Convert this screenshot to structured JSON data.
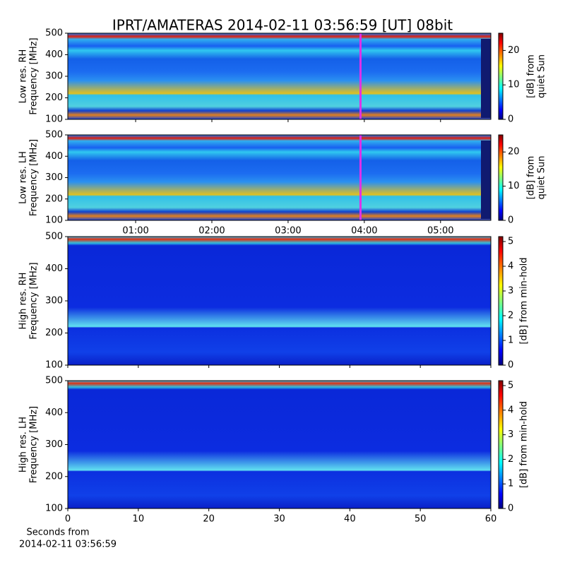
{
  "title": "IPRT/AMATERAS 2014-02-11 03:56:59 [UT]   08bit",
  "chart_data": [
    {
      "type": "heatmap",
      "ylabel": [
        "Low res. RH",
        "Frequency [MHz]"
      ],
      "ylim": [
        100,
        500
      ],
      "yticks": [
        100,
        200,
        300,
        400,
        500
      ],
      "xlim": [
        0.11,
        5.66
      ],
      "vline": 3.95,
      "vline_color": "#e030e8",
      "colorbar_label": [
        "[dB] from",
        "quiet Sun"
      ],
      "clim": [
        0,
        25
      ],
      "cticks": [
        0,
        10,
        20
      ]
    },
    {
      "type": "heatmap",
      "ylabel": [
        "Low res. LH",
        "Frequency [MHz]"
      ],
      "ylim": [
        100,
        500
      ],
      "yticks": [
        100,
        200,
        300,
        400,
        500
      ],
      "xlim": [
        0.11,
        5.66
      ],
      "xticks": [
        {
          "value": 1,
          "label": "01:00"
        },
        {
          "value": 2,
          "label": "02:00"
        },
        {
          "value": 3,
          "label": "03:00"
        },
        {
          "value": 4,
          "label": "04:00"
        },
        {
          "value": 5,
          "label": "05:00"
        }
      ],
      "vline": 3.95,
      "vline_color": "#e030e8",
      "colorbar_label": [
        "[dB] from",
        "quiet Sun"
      ],
      "clim": [
        0,
        25
      ],
      "cticks": [
        0,
        10,
        20
      ]
    },
    {
      "type": "heatmap",
      "ylabel": [
        "High res. RH",
        "Frequency [MHz]"
      ],
      "ylim": [
        100,
        500
      ],
      "yticks": [
        100,
        200,
        300,
        400,
        500
      ],
      "xlim": [
        0,
        60
      ],
      "colorbar_label": [
        "[dB] from min-hold"
      ],
      "clim": [
        0,
        5.2
      ],
      "cticks": [
        0,
        1,
        2,
        3,
        4,
        5
      ]
    },
    {
      "type": "heatmap",
      "ylabel": [
        "High res. LH",
        "Frequency [MHz]"
      ],
      "ylim": [
        100,
        500
      ],
      "yticks": [
        100,
        200,
        300,
        400,
        500
      ],
      "xlim": [
        0,
        60
      ],
      "xticks": [
        0,
        10,
        20,
        30,
        40,
        50,
        60
      ],
      "xlabel": [
        "Seconds from",
        "2014-02-11 03:56:59"
      ],
      "colorbar_label": [
        "[dB] from min-hold"
      ],
      "clim": [
        0,
        5.2
      ],
      "cticks": [
        0,
        1,
        2,
        3,
        4,
        5
      ]
    }
  ]
}
